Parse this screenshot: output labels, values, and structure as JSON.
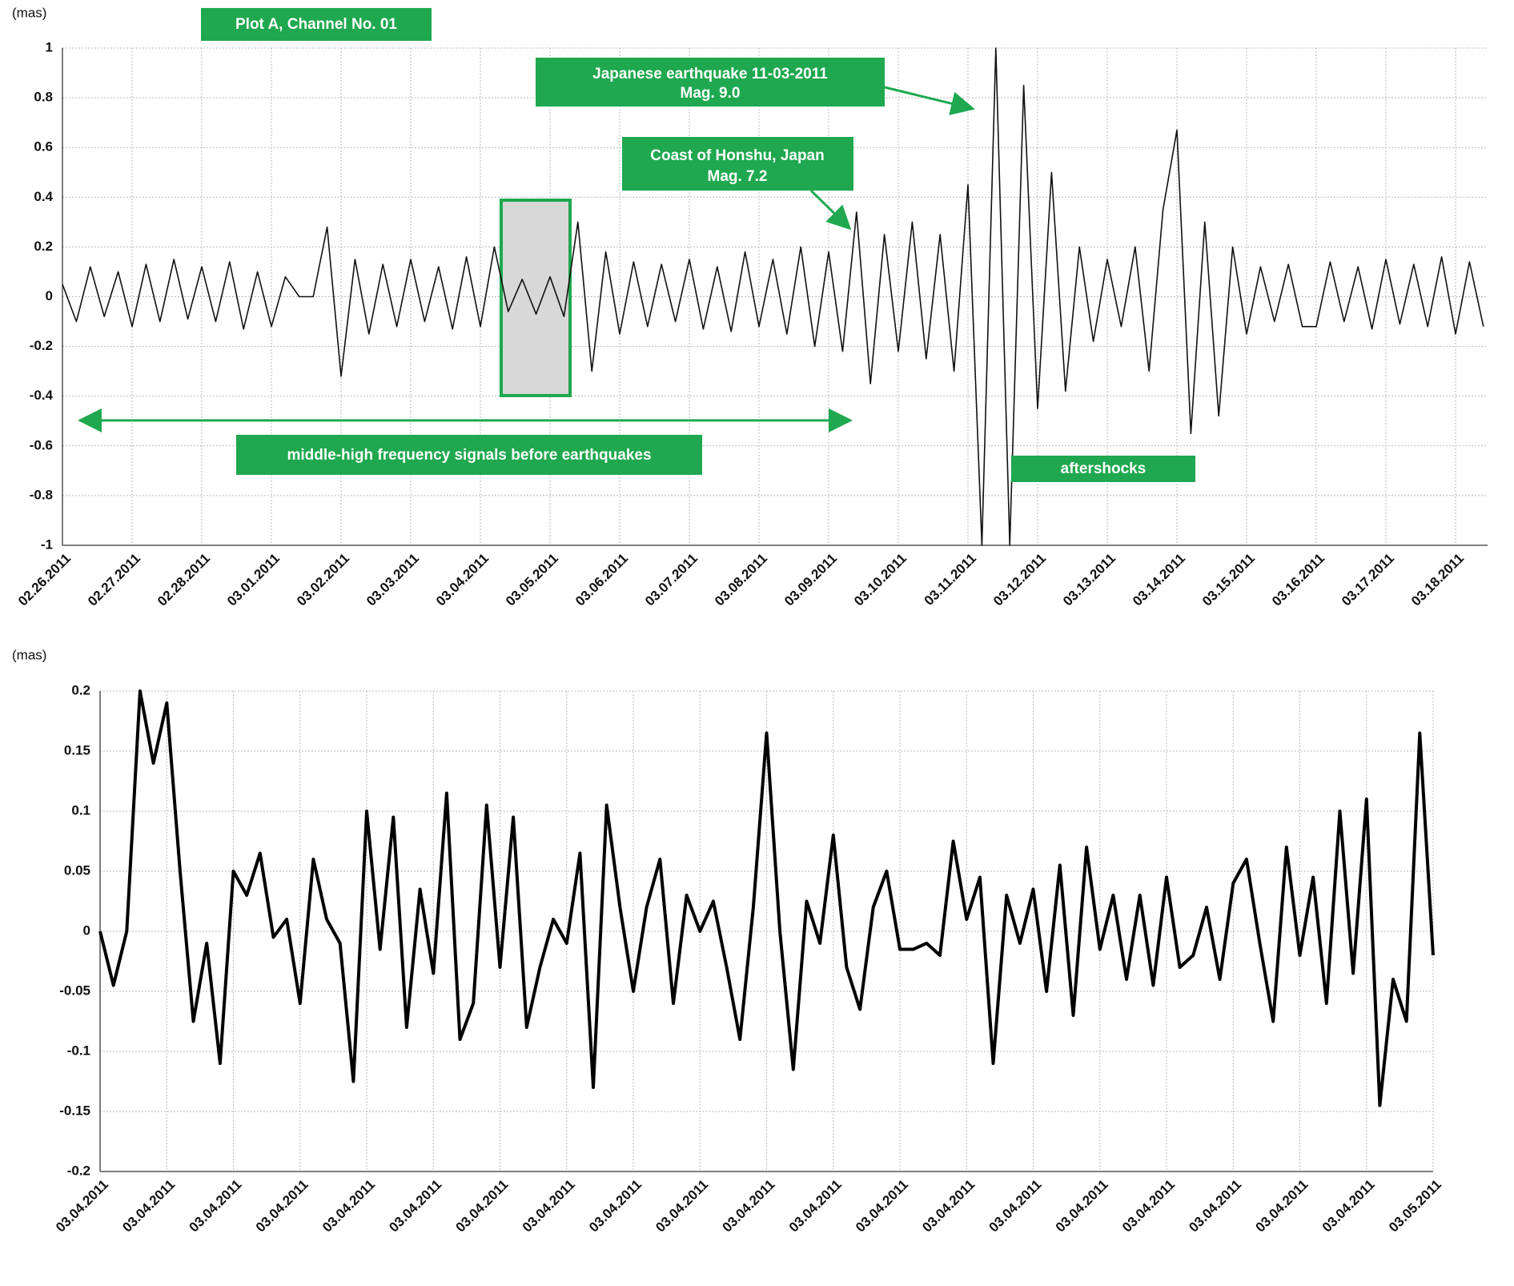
{
  "chart_data": [
    {
      "type": "line",
      "ylabel": "(mas)",
      "title": "Plot A, Channel No. 01",
      "annotations": [
        "Japanese earthquake 11-03-2011",
        "Mag. 9.0",
        "Coast of Honshu, Japan",
        "Mag. 7.2",
        "middle-high frequency signals before earthquakes",
        "aftershocks"
      ],
      "xlim": [
        0,
        20.46
      ],
      "xticks": [
        {
          "value": 0,
          "label": "02.26.2011"
        },
        {
          "value": 1,
          "label": "02.27.2011"
        },
        {
          "value": 2,
          "label": "02.28.2011"
        },
        {
          "value": 3,
          "label": "03.01.2011"
        },
        {
          "value": 4,
          "label": "03.02.2011"
        },
        {
          "value": 5,
          "label": "03.03.2011"
        },
        {
          "value": 6,
          "label": "03.04.2011"
        },
        {
          "value": 7,
          "label": "03.05.2011"
        },
        {
          "value": 8,
          "label": "03.06.2011"
        },
        {
          "value": 9,
          "label": "03.07.2011"
        },
        {
          "value": 10,
          "label": "03.08.2011"
        },
        {
          "value": 11,
          "label": "03.09.2011"
        },
        {
          "value": 12,
          "label": "03.10.2011"
        },
        {
          "value": 13,
          "label": "03.11.2011"
        },
        {
          "value": 14,
          "label": "03.12.2011"
        },
        {
          "value": 15,
          "label": "03.13.2011"
        },
        {
          "value": 16,
          "label": "03.14.2011"
        },
        {
          "value": 17,
          "label": "03.15.2011"
        },
        {
          "value": 18,
          "label": "03.16.2011"
        },
        {
          "value": 19,
          "label": "03.17.2011"
        },
        {
          "value": 20,
          "label": "03.18.2011"
        }
      ],
      "ylim": [
        -1,
        1
      ],
      "yticks": [
        -1,
        -0.8,
        -0.6,
        -0.4,
        -0.2,
        0,
        0.2,
        0.4,
        0.6,
        0.8,
        1
      ],
      "grid": true,
      "series": [
        {
          "color": "#111111",
          "x": [
            0,
            0.2,
            0.4,
            0.6,
            0.8,
            1,
            1.2,
            1.4,
            1.6,
            1.8,
            2,
            2.2,
            2.4,
            2.6,
            2.8,
            3,
            3.2,
            3.4,
            3.6,
            3.8,
            4,
            4.2,
            4.4,
            4.6,
            4.8,
            5,
            5.2,
            5.4,
            5.6,
            5.8,
            6,
            6.2,
            6.4,
            6.6,
            6.8,
            7,
            7.2,
            7.4,
            7.6,
            7.8,
            8,
            8.2,
            8.4,
            8.6,
            8.8,
            9,
            9.2,
            9.4,
            9.6,
            9.8,
            10,
            10.2,
            10.4,
            10.6,
            10.8,
            11,
            11.2,
            11.4,
            11.6,
            11.8,
            12,
            12.2,
            12.4,
            12.6,
            12.8,
            13,
            13.2,
            13.4,
            13.6,
            13.8,
            14,
            14.2,
            14.4,
            14.6,
            14.8,
            15,
            15.2,
            15.4,
            15.6,
            15.8,
            16,
            16.2,
            16.4,
            16.6,
            16.8,
            17,
            17.2,
            17.4,
            17.6,
            17.8,
            18,
            18.2,
            18.4,
            18.6,
            18.8,
            19,
            19.2,
            19.4,
            19.6,
            19.8,
            20,
            20.2,
            20.4
          ],
          "values": [
            0.05,
            -0.1,
            0.12,
            -0.08,
            0.1,
            -0.12,
            0.13,
            -0.1,
            0.15,
            -0.09,
            0.12,
            -0.1,
            0.14,
            -0.13,
            0.1,
            -0.12,
            0.08,
            0,
            0,
            0.28,
            -0.32,
            0.15,
            -0.15,
            0.13,
            -0.12,
            0.15,
            -0.1,
            0.12,
            -0.13,
            0.16,
            -0.12,
            0.2,
            -0.06,
            0.07,
            -0.07,
            0.08,
            -0.08,
            0.3,
            -0.3,
            0.18,
            -0.15,
            0.14,
            -0.12,
            0.13,
            -0.1,
            0.15,
            -0.13,
            0.12,
            -0.14,
            0.18,
            -0.12,
            0.15,
            -0.15,
            0.2,
            -0.2,
            0.18,
            -0.22,
            0.34,
            -0.35,
            0.25,
            -0.22,
            0.3,
            -0.25,
            0.25,
            -0.3,
            0.45,
            -1,
            1,
            -1,
            0.85,
            -0.45,
            0.5,
            -0.38,
            0.2,
            -0.18,
            0.15,
            -0.12,
            0.2,
            -0.3,
            0.35,
            0.67,
            -0.55,
            0.3,
            -0.48,
            0.2,
            -0.15,
            0.12,
            -0.1,
            0.13,
            -0.12,
            -0.12,
            0.14,
            -0.1,
            0.12,
            -0.13,
            0.15,
            -0.11,
            0.13,
            -0.12,
            0.16,
            -0.15,
            0.14,
            -0.12
          ]
        }
      ]
    },
    {
      "type": "line",
      "ylabel": "(mas)",
      "xlim": [
        0,
        20
      ],
      "xticks": [
        {
          "value": 0,
          "label": "03.04.2011"
        },
        {
          "value": 1,
          "label": "03.04.2011"
        },
        {
          "value": 2,
          "label": "03.04.2011"
        },
        {
          "value": 3,
          "label": "03.04.2011"
        },
        {
          "value": 4,
          "label": "03.04.2011"
        },
        {
          "value": 5,
          "label": "03.04.2011"
        },
        {
          "value": 6,
          "label": "03.04.2011"
        },
        {
          "value": 7,
          "label": "03.04.2011"
        },
        {
          "value": 8,
          "label": "03.04.2011"
        },
        {
          "value": 9,
          "label": "03.04.2011"
        },
        {
          "value": 10,
          "label": "03.04.2011"
        },
        {
          "value": 11,
          "label": "03.04.2011"
        },
        {
          "value": 12,
          "label": "03.04.2011"
        },
        {
          "value": 13,
          "label": "03.04.2011"
        },
        {
          "value": 14,
          "label": "03.04.2011"
        },
        {
          "value": 15,
          "label": "03.04.2011"
        },
        {
          "value": 16,
          "label": "03.04.2011"
        },
        {
          "value": 17,
          "label": "03.04.2011"
        },
        {
          "value": 18,
          "label": "03.04.2011"
        },
        {
          "value": 19,
          "label": "03.04.2011"
        },
        {
          "value": 20,
          "label": "03.05.2011"
        }
      ],
      "ylim": [
        -0.2,
        0.2
      ],
      "yticks": [
        -0.2,
        -0.15,
        -0.1,
        -0.05,
        0,
        0.05,
        0.1,
        0.15,
        0.2
      ],
      "grid": true,
      "series": [
        {
          "color": "#000000",
          "x": [
            0,
            0.2,
            0.4,
            0.6,
            0.8,
            1,
            1.2,
            1.4,
            1.6,
            1.8,
            2,
            2.2,
            2.4,
            2.6,
            2.8,
            3,
            3.2,
            3.4,
            3.6,
            3.8,
            4,
            4.2,
            4.4,
            4.6,
            4.8,
            5,
            5.2,
            5.4,
            5.6,
            5.8,
            6,
            6.2,
            6.4,
            6.6,
            6.8,
            7,
            7.2,
            7.4,
            7.6,
            7.8,
            8,
            8.2,
            8.4,
            8.6,
            8.8,
            9,
            9.2,
            9.4,
            9.6,
            9.8,
            10,
            10.2,
            10.4,
            10.6,
            10.8,
            11,
            11.2,
            11.4,
            11.6,
            11.8,
            12,
            12.2,
            12.4,
            12.6,
            12.8,
            13,
            13.2,
            13.4,
            13.6,
            13.8,
            14,
            14.2,
            14.4,
            14.6,
            14.8,
            15,
            15.2,
            15.4,
            15.6,
            15.8,
            16,
            16.2,
            16.4,
            16.6,
            16.8,
            17,
            17.2,
            17.4,
            17.6,
            17.8,
            18,
            18.2,
            18.4,
            18.6,
            18.8,
            19,
            19.2,
            19.4,
            19.6,
            19.8,
            20
          ],
          "values": [
            0,
            -0.045,
            0,
            0.2,
            0.14,
            0.19,
            0.05,
            -0.075,
            -0.01,
            -0.11,
            0.05,
            0.03,
            0.065,
            -0.005,
            0.01,
            -0.06,
            0.06,
            0.01,
            -0.01,
            -0.125,
            0.1,
            -0.015,
            0.095,
            -0.08,
            0.035,
            -0.035,
            0.115,
            -0.09,
            -0.06,
            0.105,
            -0.03,
            0.095,
            -0.08,
            -0.03,
            0.01,
            -0.01,
            0.065,
            -0.13,
            0.105,
            0.02,
            -0.05,
            0.02,
            0.06,
            -0.06,
            0.03,
            0,
            0.025,
            -0.03,
            -0.09,
            0.02,
            0.165,
            0,
            -0.115,
            0.025,
            -0.01,
            0.08,
            -0.03,
            -0.065,
            0.02,
            0.05,
            -0.015,
            -0.015,
            -0.01,
            -0.02,
            0.075,
            0.01,
            0.045,
            -0.11,
            0.03,
            -0.01,
            0.035,
            -0.05,
            0.055,
            -0.07,
            0.07,
            -0.015,
            0.03,
            -0.04,
            0.03,
            -0.045,
            0.045,
            -0.03,
            -0.02,
            0.02,
            -0.04,
            0.04,
            0.06,
            -0.01,
            -0.075,
            0.07,
            -0.02,
            0.045,
            -0.06,
            0.1,
            -0.035,
            0.11,
            -0.145,
            -0.04,
            -0.075,
            0.165,
            -0.02
          ]
        }
      ]
    }
  ]
}
